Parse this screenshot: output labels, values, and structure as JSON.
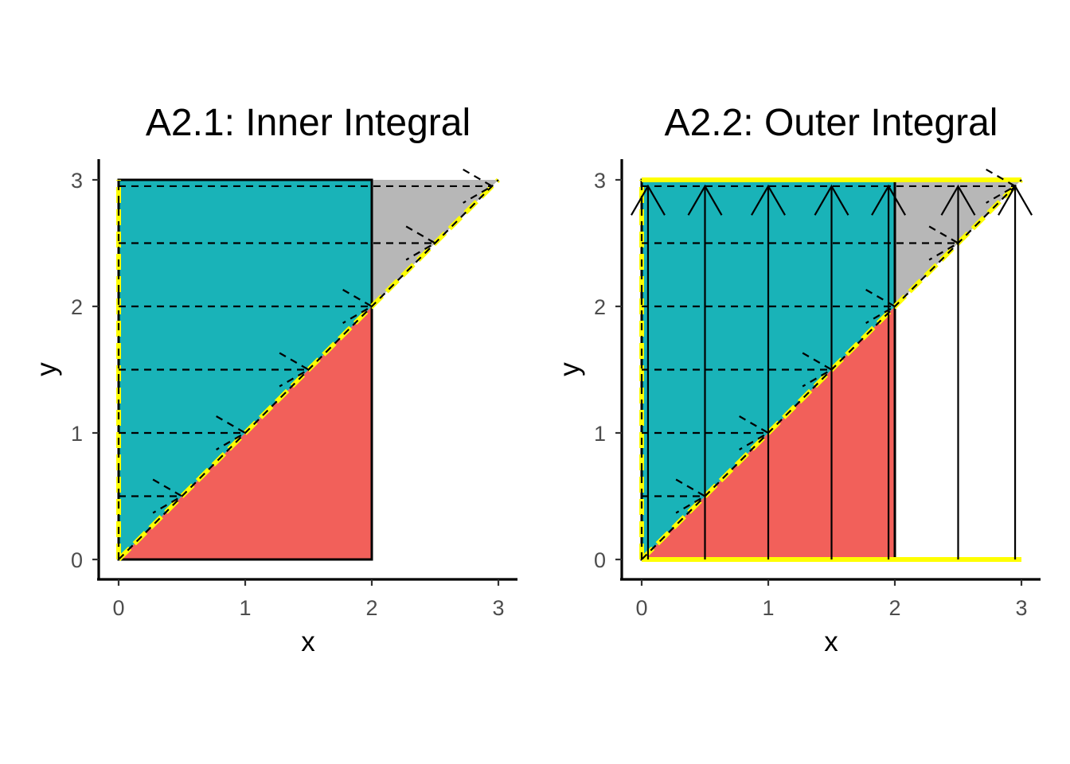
{
  "colors": {
    "teal": "#19b3b8",
    "red": "#f2605a",
    "gray": "#b7b7b7",
    "yellow": "#ffff00",
    "line": "#000000"
  },
  "chart_data": [
    {
      "type": "area",
      "title": "A2.1: Inner Integral",
      "xlabel": "x",
      "ylabel": "y",
      "xlim": [
        0,
        3
      ],
      "ylim": [
        0,
        3
      ],
      "x_ticks": [
        "0",
        "1",
        "2",
        "3"
      ],
      "y_ticks": [
        "0",
        "1",
        "2",
        "3"
      ],
      "grid": false,
      "regions": [
        {
          "color": "red",
          "vertices": [
            [
              0,
              0
            ],
            [
              2,
              0
            ],
            [
              2,
              2
            ]
          ]
        },
        {
          "color": "teal",
          "vertices": [
            [
              0,
              0
            ],
            [
              2,
              2
            ],
            [
              2,
              3
            ],
            [
              0,
              3
            ]
          ]
        },
        {
          "color": "gray",
          "vertices": [
            [
              2,
              2
            ],
            [
              3,
              3
            ],
            [
              2,
              3
            ]
          ]
        }
      ],
      "rectangle_outline": {
        "x": [
          0,
          2
        ],
        "y": [
          0,
          3
        ],
        "color": "line"
      },
      "diagonal": {
        "from": [
          0,
          0
        ],
        "to": [
          3,
          3
        ],
        "style": "dashed"
      },
      "yellow_boundaries": [
        {
          "from": [
            0,
            0
          ],
          "to": [
            0,
            3
          ]
        },
        {
          "from": [
            0,
            0
          ],
          "to": [
            3,
            3
          ]
        }
      ],
      "dashed_arrows": [
        {
          "y": 0.5,
          "x_start": 0,
          "x_end": 0.5
        },
        {
          "y": 1,
          "x_start": 0,
          "x_end": 1
        },
        {
          "y": 1.5,
          "x_start": 0,
          "x_end": 1.5
        },
        {
          "y": 2,
          "x_start": 0,
          "x_end": 2
        },
        {
          "y": 2.5,
          "x_start": 0,
          "x_end": 2.5
        },
        {
          "y": 2.95,
          "x_start": 0,
          "x_end": 2.95
        }
      ],
      "solid_arrows": []
    },
    {
      "type": "area",
      "title": "A2.2: Outer Integral",
      "xlabel": "x",
      "ylabel": "y",
      "xlim": [
        0,
        3
      ],
      "ylim": [
        0,
        3
      ],
      "x_ticks": [
        "0",
        "1",
        "2",
        "3"
      ],
      "y_ticks": [
        "0",
        "1",
        "2",
        "3"
      ],
      "grid": false,
      "regions": [
        {
          "color": "red",
          "vertices": [
            [
              0,
              0
            ],
            [
              2,
              0
            ],
            [
              2,
              2
            ]
          ]
        },
        {
          "color": "teal",
          "vertices": [
            [
              0,
              0
            ],
            [
              2,
              2
            ],
            [
              2,
              3
            ],
            [
              0,
              3
            ]
          ]
        },
        {
          "color": "gray",
          "vertices": [
            [
              2,
              2
            ],
            [
              3,
              3
            ],
            [
              2,
              3
            ]
          ]
        }
      ],
      "rectangle_outline": {
        "x": [
          0,
          2
        ],
        "y": [
          0,
          3
        ],
        "color": "line"
      },
      "diagonal": {
        "from": [
          0,
          0
        ],
        "to": [
          3,
          3
        ],
        "style": "dashed"
      },
      "yellow_boundaries": [
        {
          "from": [
            0,
            0
          ],
          "to": [
            0,
            3
          ]
        },
        {
          "from": [
            0,
            0
          ],
          "to": [
            3,
            3
          ]
        },
        {
          "from": [
            0,
            0
          ],
          "to": [
            3,
            0
          ]
        },
        {
          "from": [
            0,
            3
          ],
          "to": [
            3,
            3
          ]
        }
      ],
      "dashed_arrows": [
        {
          "y": 0.5,
          "x_start": 0,
          "x_end": 0.5
        },
        {
          "y": 1,
          "x_start": 0,
          "x_end": 1
        },
        {
          "y": 1.5,
          "x_start": 0,
          "x_end": 1.5
        },
        {
          "y": 2,
          "x_start": 0,
          "x_end": 2
        },
        {
          "y": 2.5,
          "x_start": 0,
          "x_end": 2.5
        },
        {
          "y": 2.95,
          "x_start": 0,
          "x_end": 2.95
        }
      ],
      "solid_arrows": [
        {
          "x": 0.05,
          "y_start": 0,
          "y_end": 2.95
        },
        {
          "x": 0.5,
          "y_start": 0,
          "y_end": 2.95
        },
        {
          "x": 1,
          "y_start": 0,
          "y_end": 2.95
        },
        {
          "x": 1.5,
          "y_start": 0,
          "y_end": 2.95
        },
        {
          "x": 1.95,
          "y_start": 0,
          "y_end": 2.95
        },
        {
          "x": 2.5,
          "y_start": 0,
          "y_end": 2.95
        },
        {
          "x": 2.95,
          "y_start": 0,
          "y_end": 2.95
        }
      ]
    }
  ]
}
